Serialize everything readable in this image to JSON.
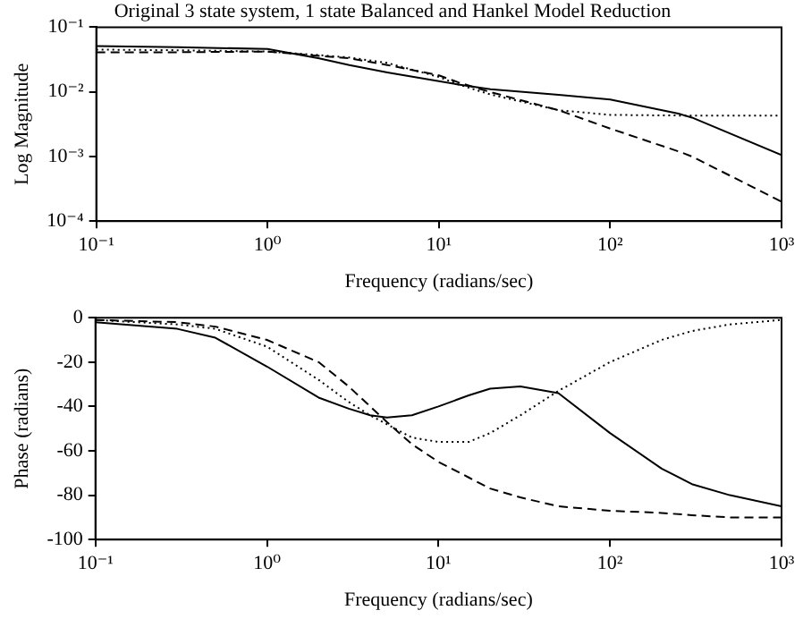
{
  "chart_data": [
    {
      "type": "line",
      "title": "Original 3 state system, 1 state Balanced and Hankel Model Reduction",
      "xlabel": "Frequency (radians/sec)",
      "ylabel": "Log Magnitude",
      "log": "xy",
      "grid": false,
      "legend": false,
      "marker": "none",
      "x": [
        0.1,
        0.3,
        1,
        2,
        3,
        5,
        10,
        13,
        20,
        50,
        100,
        250,
        300,
        1000
      ],
      "xlim": [
        0.1,
        1000
      ],
      "xticks": [
        {
          "value": 0.1,
          "label": "10⁻¹"
        },
        {
          "value": 1,
          "label": "10⁰"
        },
        {
          "value": 10,
          "label": "10¹"
        },
        {
          "value": 100,
          "label": "10²"
        },
        {
          "value": 1000,
          "label": "10³"
        }
      ],
      "ylim": [
        0.0001,
        0.1
      ],
      "yticks": [
        {
          "value": 0.0001,
          "label": "10⁻⁴"
        },
        {
          "value": 0.001,
          "label": "10⁻³"
        },
        {
          "value": 0.01,
          "label": "10⁻²"
        },
        {
          "value": 0.1,
          "label": "10⁻¹"
        }
      ],
      "series": [
        {
          "color": "#000000",
          "line_style": "solid",
          "values": [
            0.051,
            0.049,
            0.046,
            0.033,
            0.026,
            0.02,
            0.0146,
            0.013,
            0.011,
            0.009,
            0.0076,
            0.0046,
            0.004,
            0.00105
          ]
        },
        {
          "color": "#000000",
          "line_style": "dashed",
          "values": [
            0.041,
            0.041,
            0.042,
            0.036,
            0.033,
            0.026,
            0.018,
            0.014,
            0.0099,
            0.0052,
            0.0027,
            0.0012,
            0.001,
            0.0002
          ]
        },
        {
          "color": "#000000",
          "line_style": "dotted",
          "values": [
            0.045,
            0.044,
            0.042,
            0.037,
            0.034,
            0.028,
            0.017,
            0.013,
            0.0091,
            0.0052,
            0.0044,
            0.0043,
            0.0043,
            0.0043
          ]
        }
      ]
    },
    {
      "type": "line",
      "xlabel": "Frequency (radians/sec)",
      "ylabel": "Phase (radians)",
      "log": "x",
      "grid": false,
      "legend": false,
      "marker": "none",
      "x": [
        0.1,
        0.3,
        0.5,
        1,
        2,
        3,
        4,
        5,
        7,
        10,
        15,
        20,
        30,
        50,
        100,
        200,
        300,
        500,
        1000
      ],
      "xlim": [
        0.1,
        1000
      ],
      "xticks": [
        {
          "value": 0.1,
          "label": "10⁻¹"
        },
        {
          "value": 1,
          "label": "10⁰"
        },
        {
          "value": 10,
          "label": "10¹"
        },
        {
          "value": 100,
          "label": "10²"
        },
        {
          "value": 1000,
          "label": "10³"
        }
      ],
      "ylim": [
        -100,
        0
      ],
      "yticks": [
        -100,
        -80,
        -60,
        -40,
        -20,
        0
      ],
      "series": [
        {
          "color": "#000000",
          "line_style": "solid",
          "values": [
            -2,
            -5,
            -9,
            -22,
            -36,
            -41,
            -44,
            -45,
            -44,
            -40,
            -35,
            -32,
            -31,
            -34,
            -52,
            -68,
            -75,
            -80,
            -85
          ]
        },
        {
          "color": "#000000",
          "line_style": "dashed",
          "values": [
            -1,
            -2,
            -4,
            -10,
            -20,
            -31,
            -40,
            -47,
            -57,
            -65,
            -72,
            -77,
            -81,
            -85,
            -87,
            -88,
            -89,
            -90,
            -90
          ]
        },
        {
          "color": "#000000",
          "line_style": "dotted",
          "values": [
            -1,
            -3,
            -5,
            -13,
            -28,
            -38,
            -44,
            -48,
            -54,
            -56,
            -56,
            -52,
            -44,
            -33,
            -20,
            -10,
            -6,
            -3,
            -1
          ]
        }
      ]
    }
  ]
}
